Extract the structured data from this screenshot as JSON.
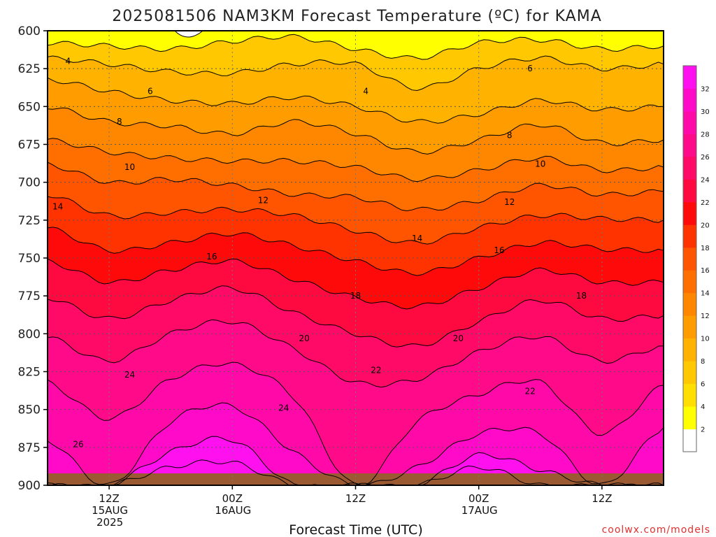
{
  "chart_data": {
    "type": "heatmap",
    "title": "2025081506 NAM3KM Forecast Temperature (ºC) for KAMA",
    "xlabel": "Forecast Time (UTC)",
    "ylabel": "",
    "watermark": "coolwx.com/models",
    "y_axis": {
      "ticks": [
        "600",
        "625",
        "650",
        "675",
        "700",
        "725",
        "750",
        "775",
        "800",
        "825",
        "850",
        "875",
        "900"
      ],
      "ylim": [
        600,
        900
      ],
      "inverted": true
    },
    "x_axis": {
      "ticks": [
        {
          "hour": 12,
          "line1": "12Z",
          "line2": "15AUG",
          "line3": "2025"
        },
        {
          "hour": 24,
          "line1": "00Z",
          "line2": "16AUG",
          "line3": ""
        },
        {
          "hour": 36,
          "line1": "12Z",
          "line2": "",
          "line3": ""
        },
        {
          "hour": 48,
          "line1": "00Z",
          "line2": "17AUG",
          "line3": ""
        },
        {
          "hour": 60,
          "line1": "12Z",
          "line2": "",
          "line3": ""
        }
      ],
      "xlim": [
        6,
        66
      ]
    },
    "grid": true,
    "colorbar": {
      "levels": [
        2,
        4,
        6,
        8,
        10,
        12,
        14,
        16,
        18,
        20,
        22,
        24,
        26,
        28,
        30,
        32
      ],
      "colors": [
        "#ffffff",
        "#ffff00",
        "#ffde00",
        "#ffc800",
        "#ffb300",
        "#ff9d00",
        "#ff8700",
        "#ff6f00",
        "#ff5500",
        "#ff3300",
        "#ff0a0a",
        "#ff0a40",
        "#ff0a66",
        "#ff0a88",
        "#ff0aa8",
        "#ff0ac8",
        "#ff10ee"
      ]
    },
    "contour_labels": [
      {
        "value": "4",
        "hour": 8,
        "p": 620
      },
      {
        "value": "4",
        "hour": 37,
        "p": 640
      },
      {
        "value": "6",
        "hour": 16,
        "p": 640
      },
      {
        "value": "6",
        "hour": 53,
        "p": 625
      },
      {
        "value": "8",
        "hour": 13,
        "p": 660
      },
      {
        "value": "8",
        "hour": 51,
        "p": 669
      },
      {
        "value": "10",
        "hour": 14,
        "p": 690
      },
      {
        "value": "10",
        "hour": 54,
        "p": 688
      },
      {
        "value": "12",
        "hour": 27,
        "p": 712
      },
      {
        "value": "12",
        "hour": 51,
        "p": 713
      },
      {
        "value": "14",
        "hour": 7,
        "p": 716
      },
      {
        "value": "14",
        "hour": 42,
        "p": 737
      },
      {
        "value": "16",
        "hour": 22,
        "p": 749
      },
      {
        "value": "16",
        "hour": 50,
        "p": 745
      },
      {
        "value": "18",
        "hour": 36,
        "p": 775
      },
      {
        "value": "18",
        "hour": 58,
        "p": 775
      },
      {
        "value": "20",
        "hour": 31,
        "p": 803
      },
      {
        "value": "20",
        "hour": 46,
        "p": 803
      },
      {
        "value": "22",
        "hour": 38,
        "p": 824
      },
      {
        "value": "22",
        "hour": 53,
        "p": 838
      },
      {
        "value": "24",
        "hour": 14,
        "p": 827
      },
      {
        "value": "24",
        "hour": 29,
        "p": 849
      },
      {
        "value": "26",
        "hour": 9,
        "p": 873
      }
    ],
    "isotherm_profile": {
      "hours": [
        6,
        12,
        18,
        24,
        30,
        36,
        42,
        48,
        54,
        60,
        66
      ],
      "series": [
        {
          "value": 4,
          "p": [
            608,
            610,
            612,
            607,
            604,
            612,
            618,
            608,
            606,
            612,
            610
          ]
        },
        {
          "value": 6,
          "p": [
            618,
            622,
            627,
            628,
            622,
            622,
            638,
            625,
            618,
            625,
            622
          ]
        },
        {
          "value": 8,
          "p": [
            632,
            640,
            646,
            648,
            644,
            650,
            660,
            655,
            646,
            652,
            650
          ]
        },
        {
          "value": 10,
          "p": [
            650,
            660,
            663,
            668,
            660,
            668,
            680,
            672,
            662,
            674,
            672
          ]
        },
        {
          "value": 12,
          "p": [
            672,
            680,
            684,
            686,
            686,
            690,
            698,
            692,
            684,
            692,
            690
          ]
        },
        {
          "value": 14,
          "p": [
            688,
            700,
            698,
            702,
            708,
            710,
            718,
            712,
            702,
            708,
            706
          ]
        },
        {
          "value": 16,
          "p": [
            708,
            722,
            720,
            718,
            722,
            732,
            740,
            730,
            722,
            724,
            725
          ]
        },
        {
          "value": 18,
          "p": [
            730,
            745,
            740,
            734,
            742,
            752,
            760,
            750,
            740,
            744,
            745
          ]
        },
        {
          "value": 20,
          "p": [
            752,
            766,
            758,
            752,
            764,
            776,
            782,
            770,
            758,
            766,
            766
          ]
        },
        {
          "value": 22,
          "p": [
            776,
            790,
            778,
            770,
            786,
            800,
            808,
            792,
            778,
            790,
            788
          ]
        },
        {
          "value": 24,
          "p": [
            802,
            818,
            800,
            792,
            810,
            832,
            830,
            812,
            802,
            818,
            808
          ]
        },
        {
          "value": 26,
          "p": [
            832,
            856,
            830,
            820,
            842,
            900,
            858,
            840,
            832,
            866,
            834
          ]
        },
        {
          "value": 28,
          "p": [
            870,
            900,
            858,
            848,
            878,
            900,
            888,
            866,
            866,
            900,
            862
          ]
        },
        {
          "value": 30,
          "p": [
            900,
            900,
            878,
            870,
            900,
            900,
            900,
            880,
            890,
            900,
            900
          ]
        },
        {
          "value": 32,
          "p": [
            900,
            900,
            888,
            885,
            900,
            900,
            900,
            888,
            900,
            900,
            900
          ]
        }
      ]
    }
  }
}
